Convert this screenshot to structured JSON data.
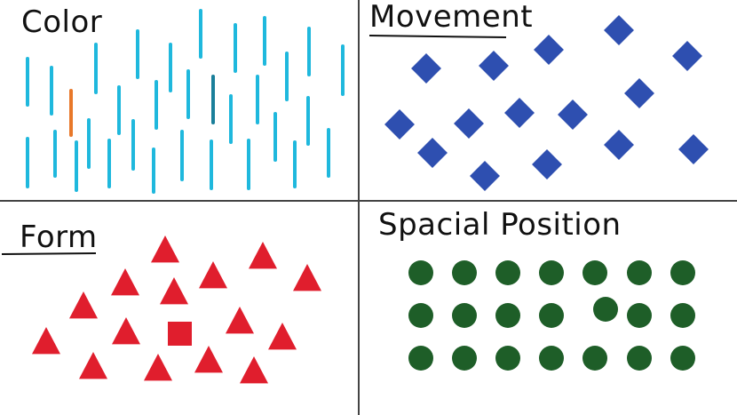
{
  "panels": {
    "color": {
      "title": "Color",
      "colors": {
        "base": "#1fb8dd",
        "odd": "#e8782a",
        "subtle": "#1a7f9a"
      }
    },
    "movement": {
      "title": "Movement",
      "colors": {
        "base": "#2e4fb0"
      }
    },
    "form": {
      "title": "Form",
      "colors": {
        "base": "#e01e2d"
      }
    },
    "spacial": {
      "title": "Spacial Position",
      "colors": {
        "base": "#1e5e28"
      }
    }
  },
  "colors": {
    "divider": "#444444",
    "ink": "#111111"
  }
}
